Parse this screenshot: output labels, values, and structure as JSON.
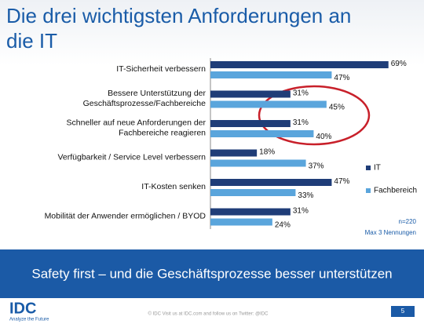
{
  "header": {
    "title": [
      "Die drei wichtigsten Anforderungen an",
      "die IT"
    ]
  },
  "chart_data": {
    "type": "bar",
    "orientation": "horizontal",
    "categories": [
      [
        "IT-Sicherheit verbessern"
      ],
      [
        "Bessere Unterstützung der",
        "Geschäftsprozesse/Fachbereiche"
      ],
      [
        "Schneller auf neue Anforderungen der",
        "Fachbereiche reagieren"
      ],
      [
        "Verfügbarkeit / Service Level verbessern"
      ],
      [
        "IT-Kosten senken"
      ],
      [
        "Mobilität der Anwender ermöglichen / BYOD"
      ]
    ],
    "series": [
      {
        "name": "IT",
        "color": "#1f3d78",
        "values": [
          69,
          31,
          31,
          18,
          47,
          31
        ],
        "value_labels": [
          "69%",
          "31%",
          "31%",
          "18%",
          "47%",
          "31%"
        ]
      },
      {
        "name": "Fachbereich",
        "color": "#5aa5dc",
        "values": [
          47,
          45,
          40,
          37,
          33,
          24
        ],
        "value_labels": [
          "47%",
          "45%",
          "40%",
          "37%",
          "33%",
          "24%"
        ]
      }
    ],
    "xlim": [
      0,
      70
    ],
    "notes": [
      "n=220",
      "Max 3 Nennungen"
    ]
  },
  "banner": "Safety first – und die Geschäftsprozesse besser unterstützen",
  "footer": {
    "logo": "IDC",
    "tagline": "Analyze the Future",
    "text": "© IDC  Visit us at IDC.com and follow us on Twitter: @IDC",
    "page": "5"
  }
}
